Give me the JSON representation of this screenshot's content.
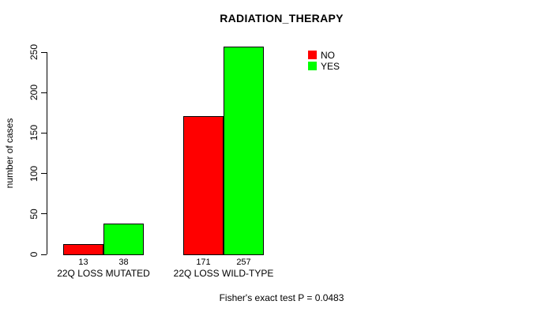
{
  "chart_data": {
    "type": "bar",
    "title": "RADIATION_THERAPY",
    "categories": [
      "22Q LOSS MUTATED",
      "22Q LOSS WILD-TYPE"
    ],
    "series": [
      {
        "name": "NO",
        "color": "#ff0000",
        "values": [
          13,
          171
        ]
      },
      {
        "name": "YES",
        "color": "#00ff00",
        "values": [
          38,
          257
        ]
      }
    ],
    "xlabel": "",
    "ylabel": "number of cases",
    "yticks": [
      0,
      50,
      100,
      150,
      200,
      250
    ],
    "ylim": [
      0,
      260
    ],
    "grid": false,
    "bar_value_labels_shown": true,
    "legend_position": "top-right"
  },
  "footer": {
    "caption": "Fisher's exact test P = 0.0483"
  },
  "colors": {
    "background": "#ffffff",
    "axis": "#000000",
    "bar_border": "#000000",
    "no_series": "#ff0000",
    "yes_series": "#00ff00"
  }
}
